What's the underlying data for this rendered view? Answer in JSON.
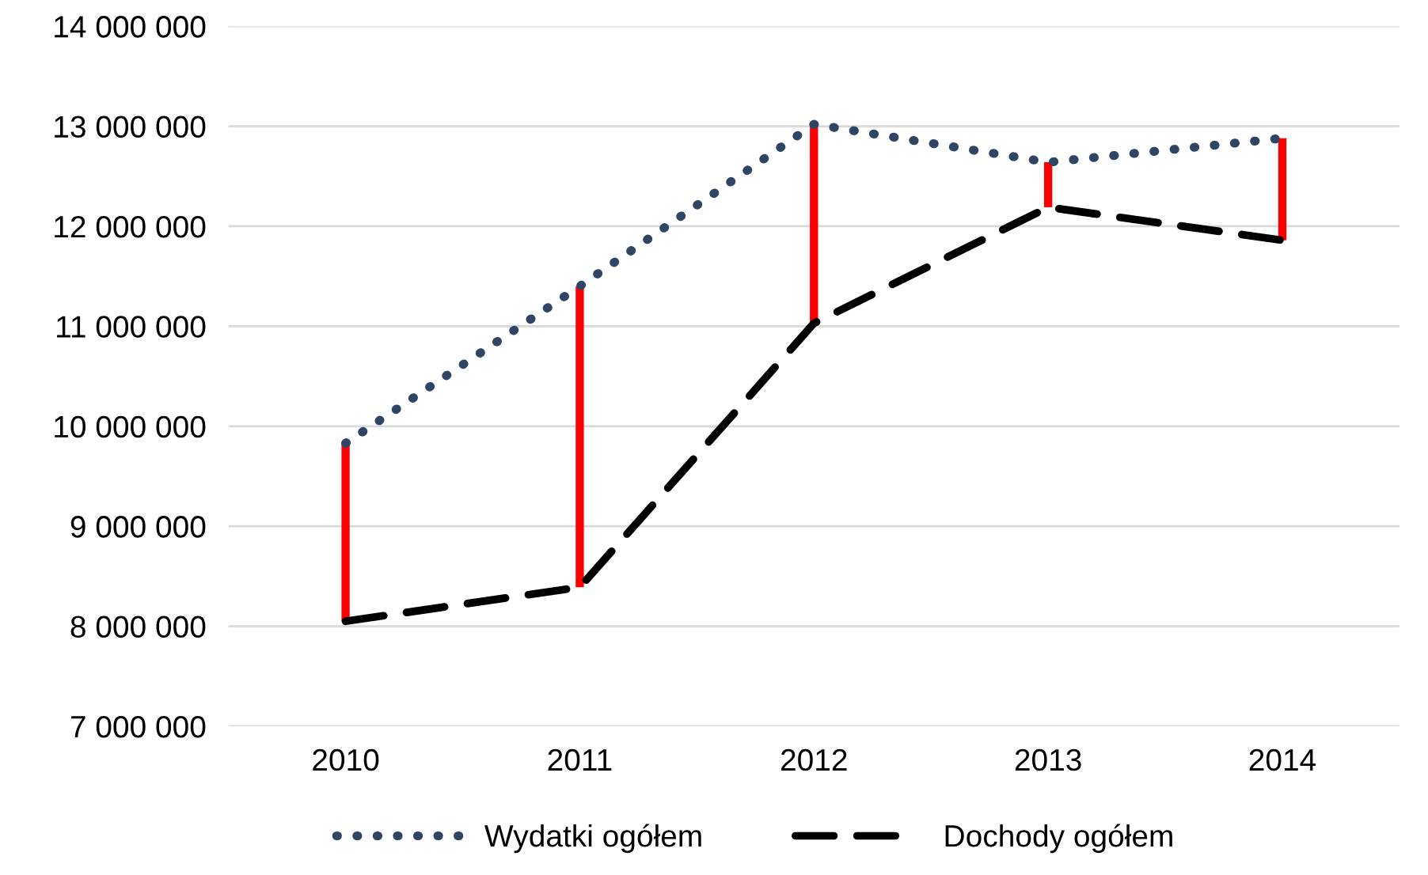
{
  "chart_data": {
    "type": "line",
    "categories": [
      "2010",
      "2011",
      "2012",
      "2013",
      "2014"
    ],
    "series": [
      {
        "type": "bar",
        "color": "#ff0000",
        "base": [
          8050000,
          8390000,
          11030000,
          12190000,
          11860000
        ],
        "values": [
          1780000,
          3010000,
          1990000,
          450000,
          1020000
        ]
      },
      {
        "name": "Wydatki ogółem",
        "color": "#2f4565",
        "line_style": "dotted",
        "values": [
          9830000,
          11400000,
          13020000,
          12640000,
          12880000
        ]
      },
      {
        "name": "Dochody ogółem",
        "color": "#000000",
        "line_style": "dashed",
        "values": [
          8050000,
          8390000,
          11030000,
          12190000,
          11860000
        ]
      }
    ],
    "ylim": [
      7000000,
      14000000
    ],
    "yticks": [
      {
        "value": 7000000,
        "label": "7 000 000"
      },
      {
        "value": 8000000,
        "label": "8 000 000"
      },
      {
        "value": 9000000,
        "label": "9 000 000"
      },
      {
        "value": 10000000,
        "label": "10 000 000"
      },
      {
        "value": 11000000,
        "label": "11 000 000"
      },
      {
        "value": 12000000,
        "label": "12 000 000"
      },
      {
        "value": 13000000,
        "label": "13 000 000"
      },
      {
        "value": 14000000,
        "label": "14 000 000"
      }
    ],
    "grid": "y",
    "legend": "bottom",
    "marker": "none"
  }
}
